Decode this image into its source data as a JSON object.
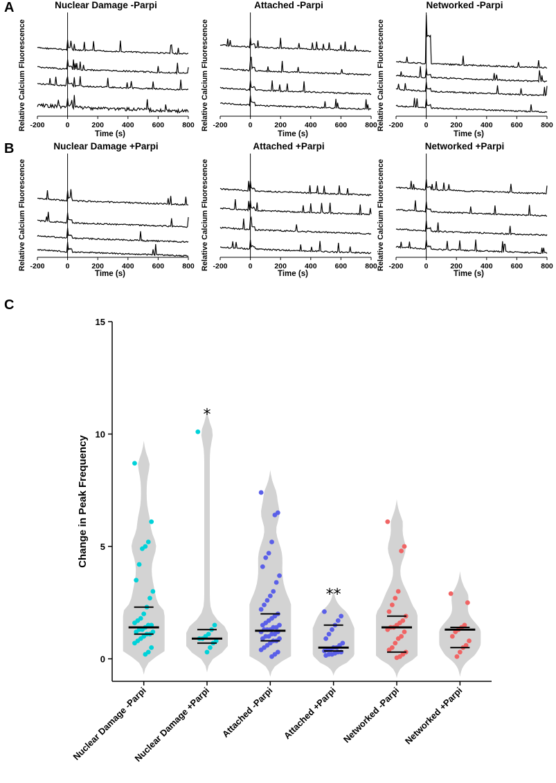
{
  "panel_letters": {
    "a": "A",
    "b": "B",
    "c": "C"
  },
  "chart_data": [
    {
      "type": "line",
      "panel": "A",
      "title": "Nuclear Damage -Parpi",
      "xlabel": "Time (s)",
      "ylabel": "Relative Calcium Fluorescence",
      "xlim": [
        -200,
        800
      ],
      "xticks": [
        -200,
        0,
        200,
        400,
        600,
        800
      ],
      "vline_at": 0,
      "traces": 4
    },
    {
      "type": "line",
      "panel": "A",
      "title": "Attached -Parpi",
      "xlabel": "Time (s)",
      "ylabel": "Relative Calcium Fluorescence",
      "xlim": [
        -200,
        800
      ],
      "xticks": [
        -200,
        0,
        200,
        400,
        600,
        800
      ],
      "vline_at": 0,
      "traces": 4
    },
    {
      "type": "line",
      "panel": "A",
      "title": "Networked -Parpi",
      "xlabel": "Time (s)",
      "ylabel": "Relative Calcium Fluorescence",
      "xlim": [
        -200,
        800
      ],
      "xticks": [
        -200,
        0,
        200,
        400,
        600,
        800
      ],
      "vline_at": 0,
      "traces": 4
    },
    {
      "type": "line",
      "panel": "B",
      "title": "Nuclear Damage +Parpi",
      "xlabel": "Time (s)",
      "ylabel": "Relative Calcium Fluorescence",
      "xlim": [
        -200,
        800
      ],
      "xticks": [
        -200,
        0,
        200,
        400,
        600,
        800
      ],
      "vline_at": 0,
      "traces": 4
    },
    {
      "type": "line",
      "panel": "B",
      "title": "Attached +Parpi",
      "xlabel": "Time (s)",
      "ylabel": "Relative Calcium Fluorescence",
      "xlim": [
        -200,
        800
      ],
      "xticks": [
        -200,
        0,
        200,
        400,
        600,
        800
      ],
      "vline_at": 0,
      "traces": 4
    },
    {
      "type": "line",
      "panel": "B",
      "title": "Networked +Parpi",
      "xlabel": "Time (s)",
      "ylabel": "Relative Calcium Fluorescence",
      "xlim": [
        -200,
        800
      ],
      "xticks": [
        -200,
        0,
        200,
        400,
        600,
        800
      ],
      "vline_at": 0,
      "traces": 4
    },
    {
      "type": "violin",
      "panel": "C",
      "title": "",
      "ylabel": "Change in Peak Frequency",
      "ylim": [
        -1,
        15
      ],
      "yticks": [
        0,
        5,
        10,
        15
      ],
      "categories": [
        "Nuclear Damage -Parpi",
        "Nuclear Damage +Parpi",
        "Attached -Parpi",
        "Attached +Parpi",
        "Networked -Parpi",
        "Networked +Parpi"
      ],
      "colors": [
        "#00d2d9",
        "#00d2d9",
        "#5a5fe8",
        "#5a5fe8",
        "#f06464",
        "#f06464"
      ],
      "significance": [
        "",
        "*",
        "",
        "**",
        "",
        ""
      ],
      "median": [
        1.4,
        0.9,
        1.25,
        0.5,
        1.4,
        1.3
      ],
      "quartiles": [
        [
          1.1,
          2.3
        ],
        [
          0.7,
          1.3
        ],
        [
          0.8,
          2.0
        ],
        [
          0.35,
          1.5
        ],
        [
          0.3,
          1.9
        ],
        [
          0.5,
          1.4
        ]
      ],
      "points": [
        [
          8.7,
          6.1,
          5.2,
          5.0,
          4.9,
          4.2,
          3.5,
          3.0,
          2.7,
          2.3,
          2.0,
          1.8,
          1.7,
          1.6,
          1.5,
          1.5,
          1.4,
          1.3,
          1.3,
          1.2,
          1.2,
          1.1,
          1.1,
          1.0,
          0.9,
          0.8,
          0.7,
          0.5,
          0.3,
          0.2
        ],
        [
          10.1,
          1.5,
          1.3,
          1.1,
          1.0,
          0.9,
          0.9,
          0.8,
          0.7,
          0.5,
          0.3
        ],
        [
          7.4,
          6.5,
          6.4,
          5.2,
          4.7,
          4.5,
          4.1,
          3.7,
          3.4,
          3.0,
          2.8,
          2.6,
          2.4,
          2.2,
          2.0,
          1.9,
          1.8,
          1.7,
          1.6,
          1.5,
          1.5,
          1.4,
          1.4,
          1.3,
          1.3,
          1.3,
          1.2,
          1.2,
          1.1,
          1.1,
          1.0,
          1.0,
          0.9,
          0.9,
          0.8,
          0.8,
          0.7,
          0.6,
          0.5,
          0.4,
          0.3,
          0.2,
          0.1
        ],
        [
          2.1,
          1.9,
          1.7,
          1.5,
          1.3,
          1.1,
          0.9,
          0.7,
          0.6,
          0.5,
          0.5,
          0.4,
          0.4,
          0.35,
          0.3,
          0.3,
          0.25,
          0.2,
          0.2,
          0.15
        ],
        [
          6.1,
          5.0,
          4.8,
          3.0,
          2.7,
          2.4,
          2.1,
          1.9,
          1.7,
          1.6,
          1.5,
          1.4,
          1.4,
          1.3,
          1.2,
          1.0,
          0.9,
          0.7,
          0.5,
          0.4,
          0.3,
          0.2,
          0.1,
          0.05
        ],
        [
          2.9,
          2.5,
          1.5,
          1.4,
          1.3,
          1.2,
          1.0,
          0.8,
          0.6,
          0.5,
          0.3,
          0.1
        ]
      ]
    }
  ]
}
